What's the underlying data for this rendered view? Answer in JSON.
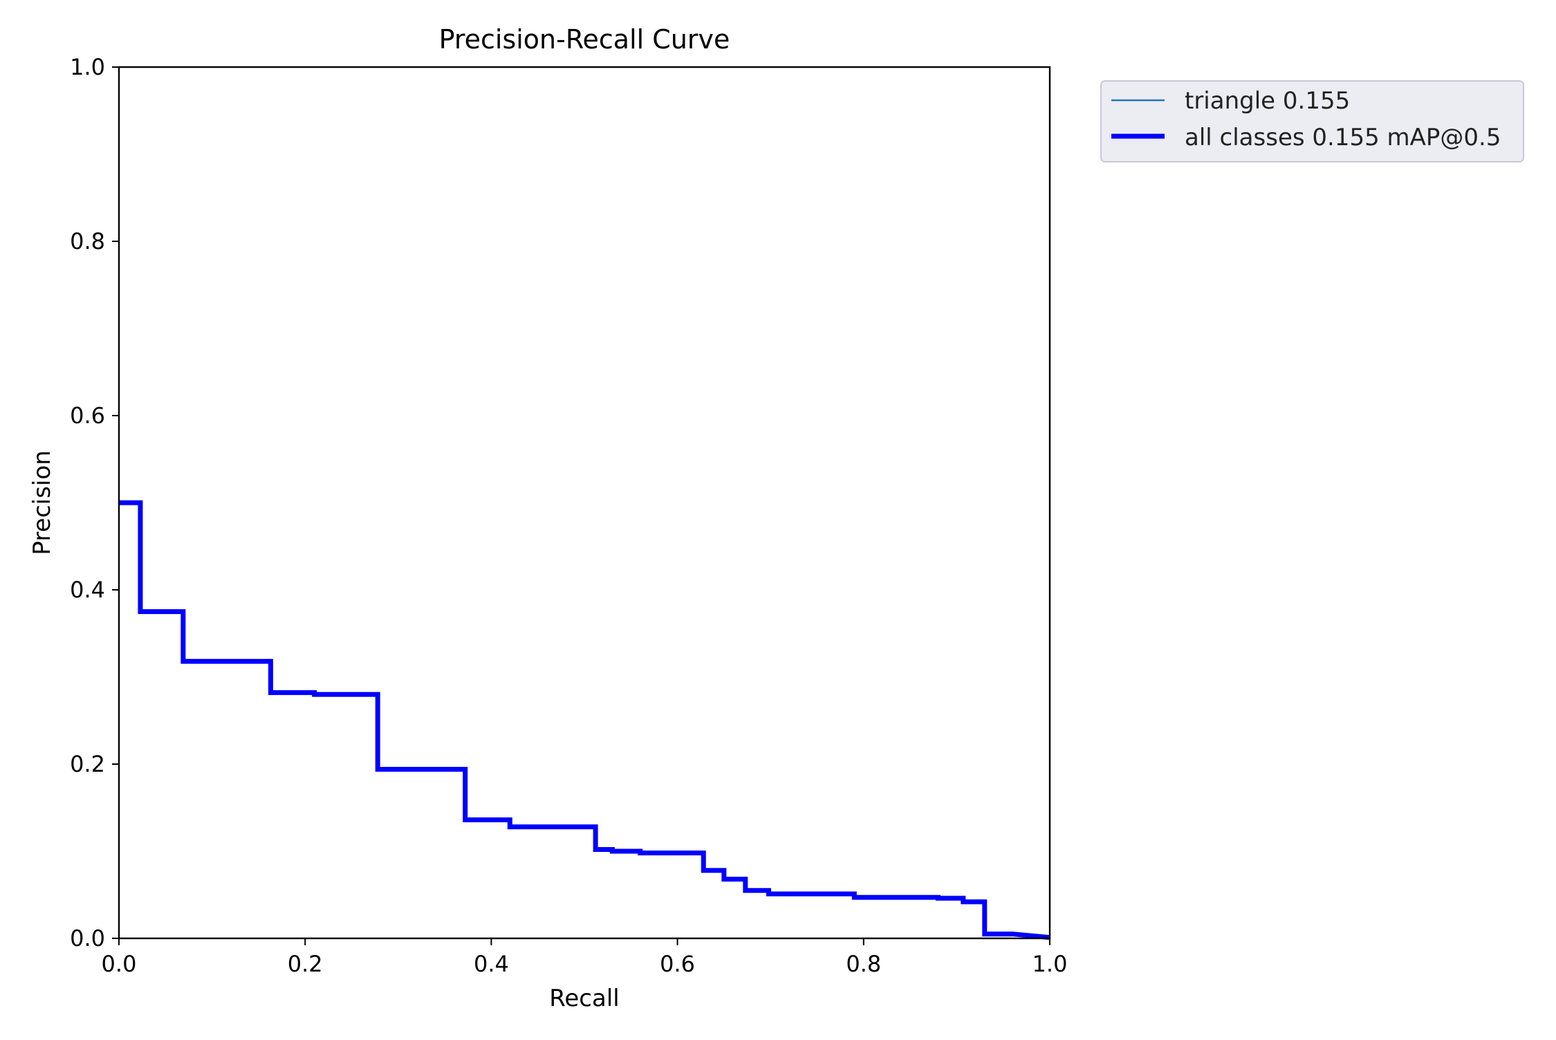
{
  "chart_data": {
    "type": "line",
    "title": "Precision-Recall Curve",
    "xlabel": "Recall",
    "ylabel": "Precision",
    "xlim": [
      0,
      1
    ],
    "ylim": [
      0,
      1
    ],
    "xticks": [
      "0.0",
      "0.2",
      "0.4",
      "0.6",
      "0.8",
      "1.0"
    ],
    "yticks": [
      "0.0",
      "0.2",
      "0.4",
      "0.6",
      "0.8",
      "1.0"
    ],
    "grid": false,
    "legend_position": "outside-top-right",
    "series": [
      {
        "name": "triangle 0.155",
        "color": "#1f77b4",
        "style": "thin",
        "x": [
          0.0,
          0.023,
          0.023,
          0.069,
          0.069,
          0.163,
          0.163,
          0.21,
          0.21,
          0.278,
          0.278,
          0.372,
          0.372,
          0.42,
          0.42,
          0.512,
          0.512,
          0.53,
          0.53,
          0.56,
          0.56,
          0.628,
          0.628,
          0.65,
          0.65,
          0.673,
          0.673,
          0.698,
          0.698,
          0.79,
          0.79,
          0.88,
          0.88,
          0.907,
          0.907,
          0.93,
          0.93,
          0.96,
          1.0
        ],
        "y": [
          0.5,
          0.5,
          0.375,
          0.375,
          0.318,
          0.318,
          0.282,
          0.282,
          0.28,
          0.28,
          0.194,
          0.194,
          0.136,
          0.136,
          0.128,
          0.128,
          0.102,
          0.102,
          0.1,
          0.1,
          0.098,
          0.098,
          0.078,
          0.078,
          0.068,
          0.068,
          0.055,
          0.055,
          0.051,
          0.051,
          0.047,
          0.047,
          0.046,
          0.046,
          0.042,
          0.042,
          0.005,
          0.005,
          0.001
        ]
      },
      {
        "name": "all classes 0.155 mAP@0.5",
        "color": "#0000ff",
        "style": "thick",
        "x": [
          0.0,
          0.023,
          0.023,
          0.069,
          0.069,
          0.163,
          0.163,
          0.21,
          0.21,
          0.278,
          0.278,
          0.372,
          0.372,
          0.42,
          0.42,
          0.512,
          0.512,
          0.53,
          0.53,
          0.56,
          0.56,
          0.628,
          0.628,
          0.65,
          0.65,
          0.673,
          0.673,
          0.698,
          0.698,
          0.79,
          0.79,
          0.88,
          0.88,
          0.907,
          0.907,
          0.93,
          0.93,
          0.96,
          1.0
        ],
        "y": [
          0.5,
          0.5,
          0.375,
          0.375,
          0.318,
          0.318,
          0.282,
          0.282,
          0.28,
          0.28,
          0.194,
          0.194,
          0.136,
          0.136,
          0.128,
          0.128,
          0.102,
          0.102,
          0.1,
          0.1,
          0.098,
          0.098,
          0.078,
          0.078,
          0.068,
          0.068,
          0.055,
          0.055,
          0.051,
          0.051,
          0.047,
          0.047,
          0.046,
          0.046,
          0.042,
          0.042,
          0.005,
          0.005,
          0.001
        ]
      }
    ]
  }
}
